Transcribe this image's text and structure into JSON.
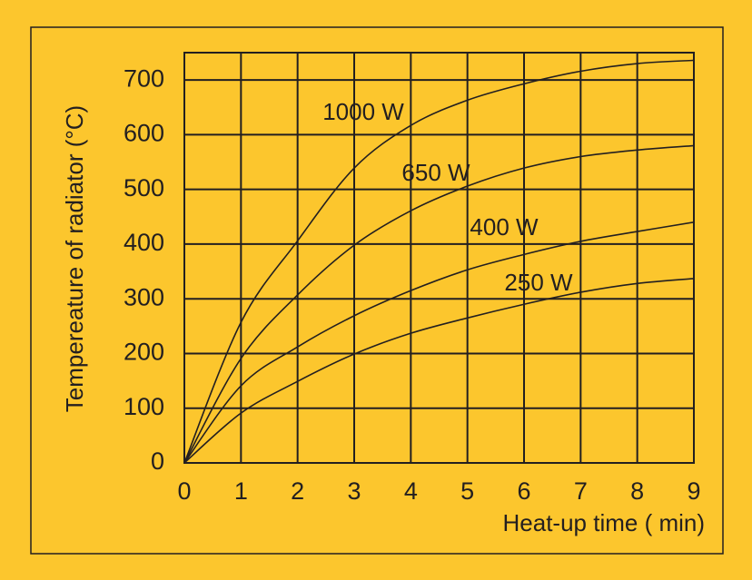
{
  "chart_data": {
    "type": "line",
    "y_label": "Tempereature of radiator (°C)",
    "x_label": "Heat-up time ( min)",
    "x": [
      0,
      1,
      2,
      3,
      4,
      5,
      6,
      7,
      8,
      9
    ],
    "series": [
      {
        "name": "1000 W",
        "color": "#231f20",
        "values": [
          0,
          257,
          406,
          539,
          617,
          663,
          693,
          716,
          730,
          736
        ]
      },
      {
        "name": "650 W",
        "color": "#231f20",
        "values": [
          0,
          191,
          307,
          398,
          461,
          506,
          539,
          560,
          572,
          580
        ]
      },
      {
        "name": "400 W",
        "color": "#231f20",
        "values": [
          0,
          141,
          212,
          269,
          315,
          353,
          381,
          405,
          423,
          440
        ]
      },
      {
        "name": "250 W",
        "color": "#231f20",
        "values": [
          0,
          91,
          149,
          199,
          237,
          265,
          290,
          312,
          328,
          337
        ]
      }
    ],
    "xlim": [
      0,
      9
    ],
    "xticks": [
      0,
      1,
      2,
      3,
      4,
      5,
      6,
      7,
      8,
      9
    ],
    "ylim": [
      0,
      750
    ],
    "yticks": [
      0,
      100,
      200,
      300,
      400,
      500,
      600,
      700
    ],
    "grid": true
  }
}
